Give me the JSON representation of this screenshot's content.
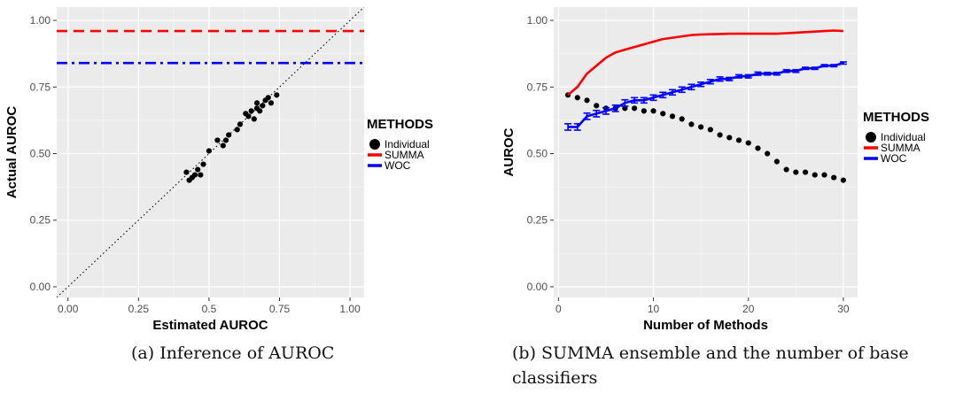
{
  "chart_data": [
    {
      "type": "scatter",
      "xlabel": "Estimated AUROC",
      "ylabel": "Actual AUROC",
      "xlim": [
        -0.04,
        1.05
      ],
      "ylim": [
        -0.04,
        1.05
      ],
      "x_ticks": [
        "0.00",
        "0.25",
        "0.5",
        "0.75",
        "1.00"
      ],
      "x_tick_values": [
        0.0,
        0.25,
        0.5,
        0.75,
        1.0
      ],
      "y_ticks": [
        "0.00",
        "0.25",
        "0.50",
        "0.75",
        "1.00"
      ],
      "y_tick_values": [
        0.0,
        0.25,
        0.5,
        0.75,
        1.0
      ],
      "legend_title": "METHODS",
      "legend_position": "right",
      "series": [
        {
          "name": "Individual",
          "kind": "points",
          "color": "#000000",
          "x": [
            0.42,
            0.43,
            0.44,
            0.45,
            0.46,
            0.47,
            0.48,
            0.5,
            0.53,
            0.55,
            0.56,
            0.57,
            0.6,
            0.61,
            0.63,
            0.64,
            0.65,
            0.66,
            0.67,
            0.67,
            0.68,
            0.69,
            0.7,
            0.71,
            0.72,
            0.74
          ],
          "y": [
            0.43,
            0.4,
            0.41,
            0.42,
            0.44,
            0.42,
            0.46,
            0.51,
            0.55,
            0.53,
            0.55,
            0.57,
            0.59,
            0.61,
            0.65,
            0.64,
            0.66,
            0.63,
            0.67,
            0.69,
            0.66,
            0.68,
            0.7,
            0.71,
            0.69,
            0.72
          ]
        },
        {
          "name": "SUMMA",
          "kind": "hline",
          "color": "#ff0000",
          "dash": "dashed",
          "y": 0.96
        },
        {
          "name": "WOC",
          "kind": "hline",
          "color": "#0000ff",
          "dash": "dotdash",
          "y": 0.84
        }
      ],
      "reference_line": "y = x (dotted)"
    },
    {
      "type": "line",
      "xlabel": "Number of Methods",
      "ylabel": "AUROC",
      "xlim": [
        -0.5,
        31.5
      ],
      "ylim": [
        -0.04,
        1.05
      ],
      "x_ticks": [
        "0",
        "10",
        "20",
        "30"
      ],
      "x_tick_values": [
        0,
        10,
        20,
        30
      ],
      "y_ticks": [
        "0.00",
        "0.25",
        "0.50",
        "0.75",
        "1.00"
      ],
      "y_tick_values": [
        0.0,
        0.25,
        0.5,
        0.75,
        1.0
      ],
      "legend_title": "METHODS",
      "legend_position": "right",
      "x": [
        1,
        2,
        3,
        4,
        5,
        6,
        7,
        8,
        9,
        10,
        11,
        12,
        13,
        14,
        15,
        16,
        17,
        18,
        19,
        20,
        21,
        22,
        23,
        24,
        25,
        26,
        27,
        28,
        29,
        30
      ],
      "series": [
        {
          "name": "Individual",
          "kind": "points",
          "color": "#000000",
          "values": [
            0.72,
            0.71,
            0.7,
            0.68,
            0.67,
            0.67,
            0.67,
            0.67,
            0.66,
            0.66,
            0.65,
            0.64,
            0.63,
            0.61,
            0.6,
            0.59,
            0.57,
            0.56,
            0.55,
            0.54,
            0.52,
            0.5,
            0.47,
            0.44,
            0.43,
            0.43,
            0.42,
            0.42,
            0.41,
            0.4
          ]
        },
        {
          "name": "SUMMA",
          "kind": "line",
          "color": "#ff0000",
          "values": [
            0.72,
            0.75,
            0.8,
            0.83,
            0.86,
            0.88,
            0.89,
            0.9,
            0.91,
            0.92,
            0.93,
            0.935,
            0.94,
            0.945,
            0.947,
            0.948,
            0.949,
            0.95,
            0.95,
            0.95,
            0.95,
            0.95,
            0.95,
            0.952,
            0.954,
            0.956,
            0.958,
            0.96,
            0.962,
            0.96
          ]
        },
        {
          "name": "WOC",
          "kind": "errorbar-line",
          "color": "#0000ff",
          "values": [
            0.6,
            0.6,
            0.64,
            0.65,
            0.66,
            0.67,
            0.69,
            0.7,
            0.7,
            0.71,
            0.72,
            0.73,
            0.74,
            0.75,
            0.76,
            0.77,
            0.78,
            0.78,
            0.79,
            0.79,
            0.8,
            0.8,
            0.8,
            0.81,
            0.81,
            0.82,
            0.82,
            0.83,
            0.83,
            0.84
          ],
          "error": [
            0.012,
            0.012,
            0.012,
            0.012,
            0.012,
            0.012,
            0.012,
            0.01,
            0.01,
            0.01,
            0.01,
            0.01,
            0.01,
            0.01,
            0.008,
            0.008,
            0.008,
            0.006,
            0.006,
            0.006,
            0.006,
            0.005,
            0.005,
            0.005,
            0.005,
            0.004,
            0.004,
            0.004,
            0.004,
            0.004
          ]
        }
      ]
    }
  ],
  "captions": [
    "(a) Inference of AUROC",
    "(b) SUMMA ensemble and the number of base",
    "classifiers"
  ]
}
